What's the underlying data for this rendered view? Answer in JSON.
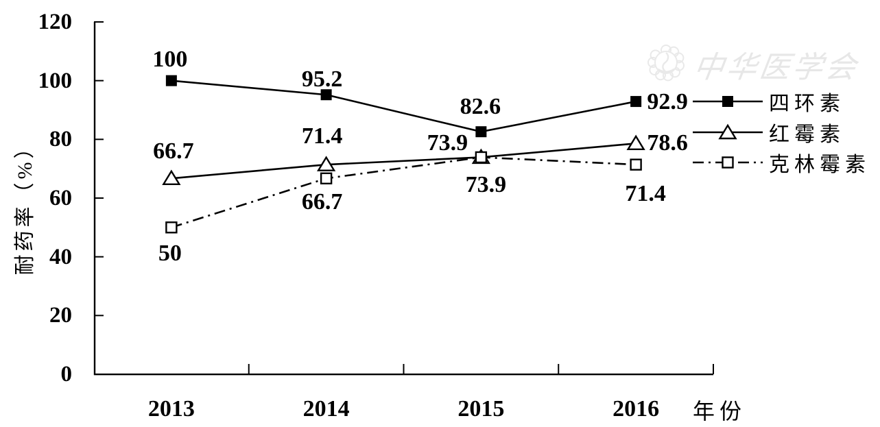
{
  "watermark": {
    "logo": "cma-emblem",
    "text": "中华医学会"
  },
  "chart_data": {
    "type": "line",
    "title": "",
    "categories": [
      "2013",
      "2014",
      "2015",
      "2016"
    ],
    "xlabel": "年份",
    "ylabel": "耐药率（%）",
    "ylim": [
      0,
      120
    ],
    "yticks": [
      0,
      20,
      40,
      60,
      80,
      100,
      120
    ],
    "grid": false,
    "legend_position": "right",
    "series": [
      {
        "name": "四环素",
        "line": "solid",
        "marker": "filled-square",
        "values": [
          100,
          95.2,
          82.6,
          92.9
        ],
        "labels": [
          "100",
          "95.2",
          "82.6",
          "92.9"
        ],
        "label_offsets": [
          [
            -2,
            -31
          ],
          [
            -6,
            -22
          ],
          [
            -1,
            -36
          ],
          [
            46,
            1
          ]
        ]
      },
      {
        "name": "红霉素",
        "line": "solid",
        "marker": "open-triangle",
        "values": [
          66.7,
          71.4,
          73.9,
          78.6
        ],
        "labels": [
          "66.7",
          "71.4",
          "73.9",
          "78.6"
        ],
        "label_offsets": [
          [
            3,
            -39
          ],
          [
            -6,
            -41
          ],
          [
            -49,
            -20
          ],
          [
            46,
            0
          ]
        ]
      },
      {
        "name": "克林霉素",
        "line": "dashdot",
        "marker": "open-square",
        "values": [
          50,
          66.7,
          73.9,
          71.4
        ],
        "labels": [
          "50",
          "66.7",
          "73.9",
          "71.4"
        ],
        "label_offsets": [
          [
            -2,
            38
          ],
          [
            -6,
            35
          ],
          [
            7,
            41
          ],
          [
            14,
            43
          ]
        ]
      }
    ]
  }
}
